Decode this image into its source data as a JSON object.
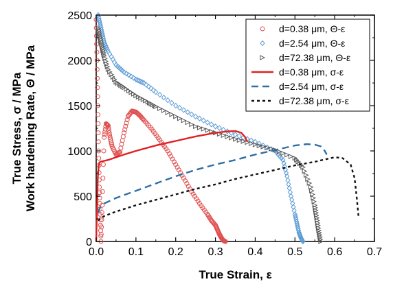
{
  "chart_data": {
    "type": "scatter",
    "title": "",
    "xlabel": "True Strain, ε",
    "ylabel_lines": [
      "True Stress, σ / MPa",
      "Work hardening Rate, Θ / MPa"
    ],
    "xlim": [
      0.0,
      0.7
    ],
    "ylim": [
      0,
      2500
    ],
    "xticks": [
      "0.0",
      "0.1",
      "0.2",
      "0.3",
      "0.4",
      "0.5",
      "0.6",
      "0.7"
    ],
    "yticks": [
      "0",
      "500",
      "1000",
      "1500",
      "2000",
      "2500"
    ],
    "legend_placement": "top-right",
    "series": [
      {
        "name": "d=0.38 μm, Θ-ε",
        "kind": "scatter",
        "marker": "circle",
        "color": "#e05050",
        "x": [
          0.0,
          0.002,
          0.004,
          0.006,
          0.008,
          0.01,
          0.012,
          0.015,
          0.02,
          0.025,
          0.03,
          0.035,
          0.04,
          0.05,
          0.06,
          0.07,
          0.08,
          0.09,
          0.1,
          0.11,
          0.12,
          0.14,
          0.16,
          0.18,
          0.2,
          0.22,
          0.24,
          0.26,
          0.28,
          0.29,
          0.3,
          0.305,
          0.31,
          0.315,
          0.32,
          0.325
        ],
        "y": [
          2450,
          2000,
          1500,
          1000,
          600,
          300,
          0,
          400,
          1150,
          1300,
          1280,
          1150,
          1050,
          960,
          990,
          1200,
          1380,
          1440,
          1430,
          1390,
          1340,
          1240,
          1120,
          1000,
          850,
          700,
          550,
          420,
          300,
          230,
          180,
          130,
          80,
          40,
          10,
          0
        ]
      },
      {
        "name": "d=2.54 μm, Θ-ε",
        "kind": "scatter",
        "marker": "diamond",
        "color": "#5b9bd5",
        "x": [
          0.005,
          0.01,
          0.015,
          0.02,
          0.03,
          0.05,
          0.07,
          0.1,
          0.12,
          0.15,
          0.2,
          0.25,
          0.3,
          0.35,
          0.4,
          0.45,
          0.47,
          0.48,
          0.49,
          0.5,
          0.505,
          0.51,
          0.515,
          0.52
        ],
        "y": [
          2500,
          2400,
          2300,
          2200,
          2100,
          1950,
          1870,
          1790,
          1750,
          1650,
          1500,
          1380,
          1270,
          1180,
          1100,
          1000,
          900,
          720,
          500,
          300,
          200,
          100,
          40,
          0
        ]
      },
      {
        "name": "d=72.38 μm, Θ-ε",
        "kind": "scatter",
        "marker": "triangle-right",
        "color": "#555555",
        "x": [
          0.005,
          0.01,
          0.015,
          0.02,
          0.03,
          0.05,
          0.07,
          0.1,
          0.13,
          0.15,
          0.2,
          0.25,
          0.3,
          0.35,
          0.4,
          0.45,
          0.5,
          0.52,
          0.54,
          0.55,
          0.555,
          0.56,
          0.565
        ],
        "y": [
          2350,
          2250,
          2150,
          2050,
          1900,
          1760,
          1700,
          1610,
          1540,
          1490,
          1380,
          1270,
          1200,
          1130,
          1070,
          1010,
          920,
          820,
          600,
          400,
          260,
          120,
          0
        ]
      },
      {
        "name": "d=0.38 μm, σ-ε",
        "kind": "line",
        "dash": "solid",
        "color": "#e02020",
        "x": [
          0.0,
          0.002,
          0.004,
          0.006,
          0.008,
          0.01,
          0.03,
          0.05,
          0.07,
          0.1,
          0.15,
          0.2,
          0.25,
          0.3,
          0.33,
          0.35,
          0.365,
          0.375,
          0.38
        ],
        "y": [
          0,
          350,
          700,
          820,
          870,
          880,
          900,
          930,
          960,
          1000,
          1060,
          1110,
          1160,
          1200,
          1215,
          1220,
          1200,
          1150,
          1100
        ]
      },
      {
        "name": "d=2.54 μm, σ-ε",
        "kind": "line",
        "dash": "dashed",
        "color": "#2e6da4",
        "x": [
          0.005,
          0.01,
          0.02,
          0.05,
          0.1,
          0.15,
          0.2,
          0.25,
          0.3,
          0.35,
          0.4,
          0.45,
          0.5,
          0.53,
          0.55,
          0.565,
          0.575,
          0.58
        ],
        "y": [
          320,
          380,
          420,
          480,
          560,
          640,
          720,
          790,
          850,
          900,
          960,
          1010,
          1060,
          1075,
          1070,
          1050,
          1000,
          960
        ]
      },
      {
        "name": "d=72.38 μm, σ-ε",
        "kind": "line",
        "dash": "dotted",
        "color": "#111111",
        "x": [
          0.005,
          0.01,
          0.02,
          0.05,
          0.1,
          0.15,
          0.2,
          0.25,
          0.3,
          0.35,
          0.4,
          0.45,
          0.5,
          0.55,
          0.6,
          0.62,
          0.64,
          0.65,
          0.655,
          0.66
        ],
        "y": [
          230,
          250,
          280,
          330,
          400,
          460,
          520,
          580,
          630,
          690,
          740,
          790,
          840,
          880,
          930,
          920,
          850,
          700,
          500,
          270
        ]
      }
    ]
  }
}
